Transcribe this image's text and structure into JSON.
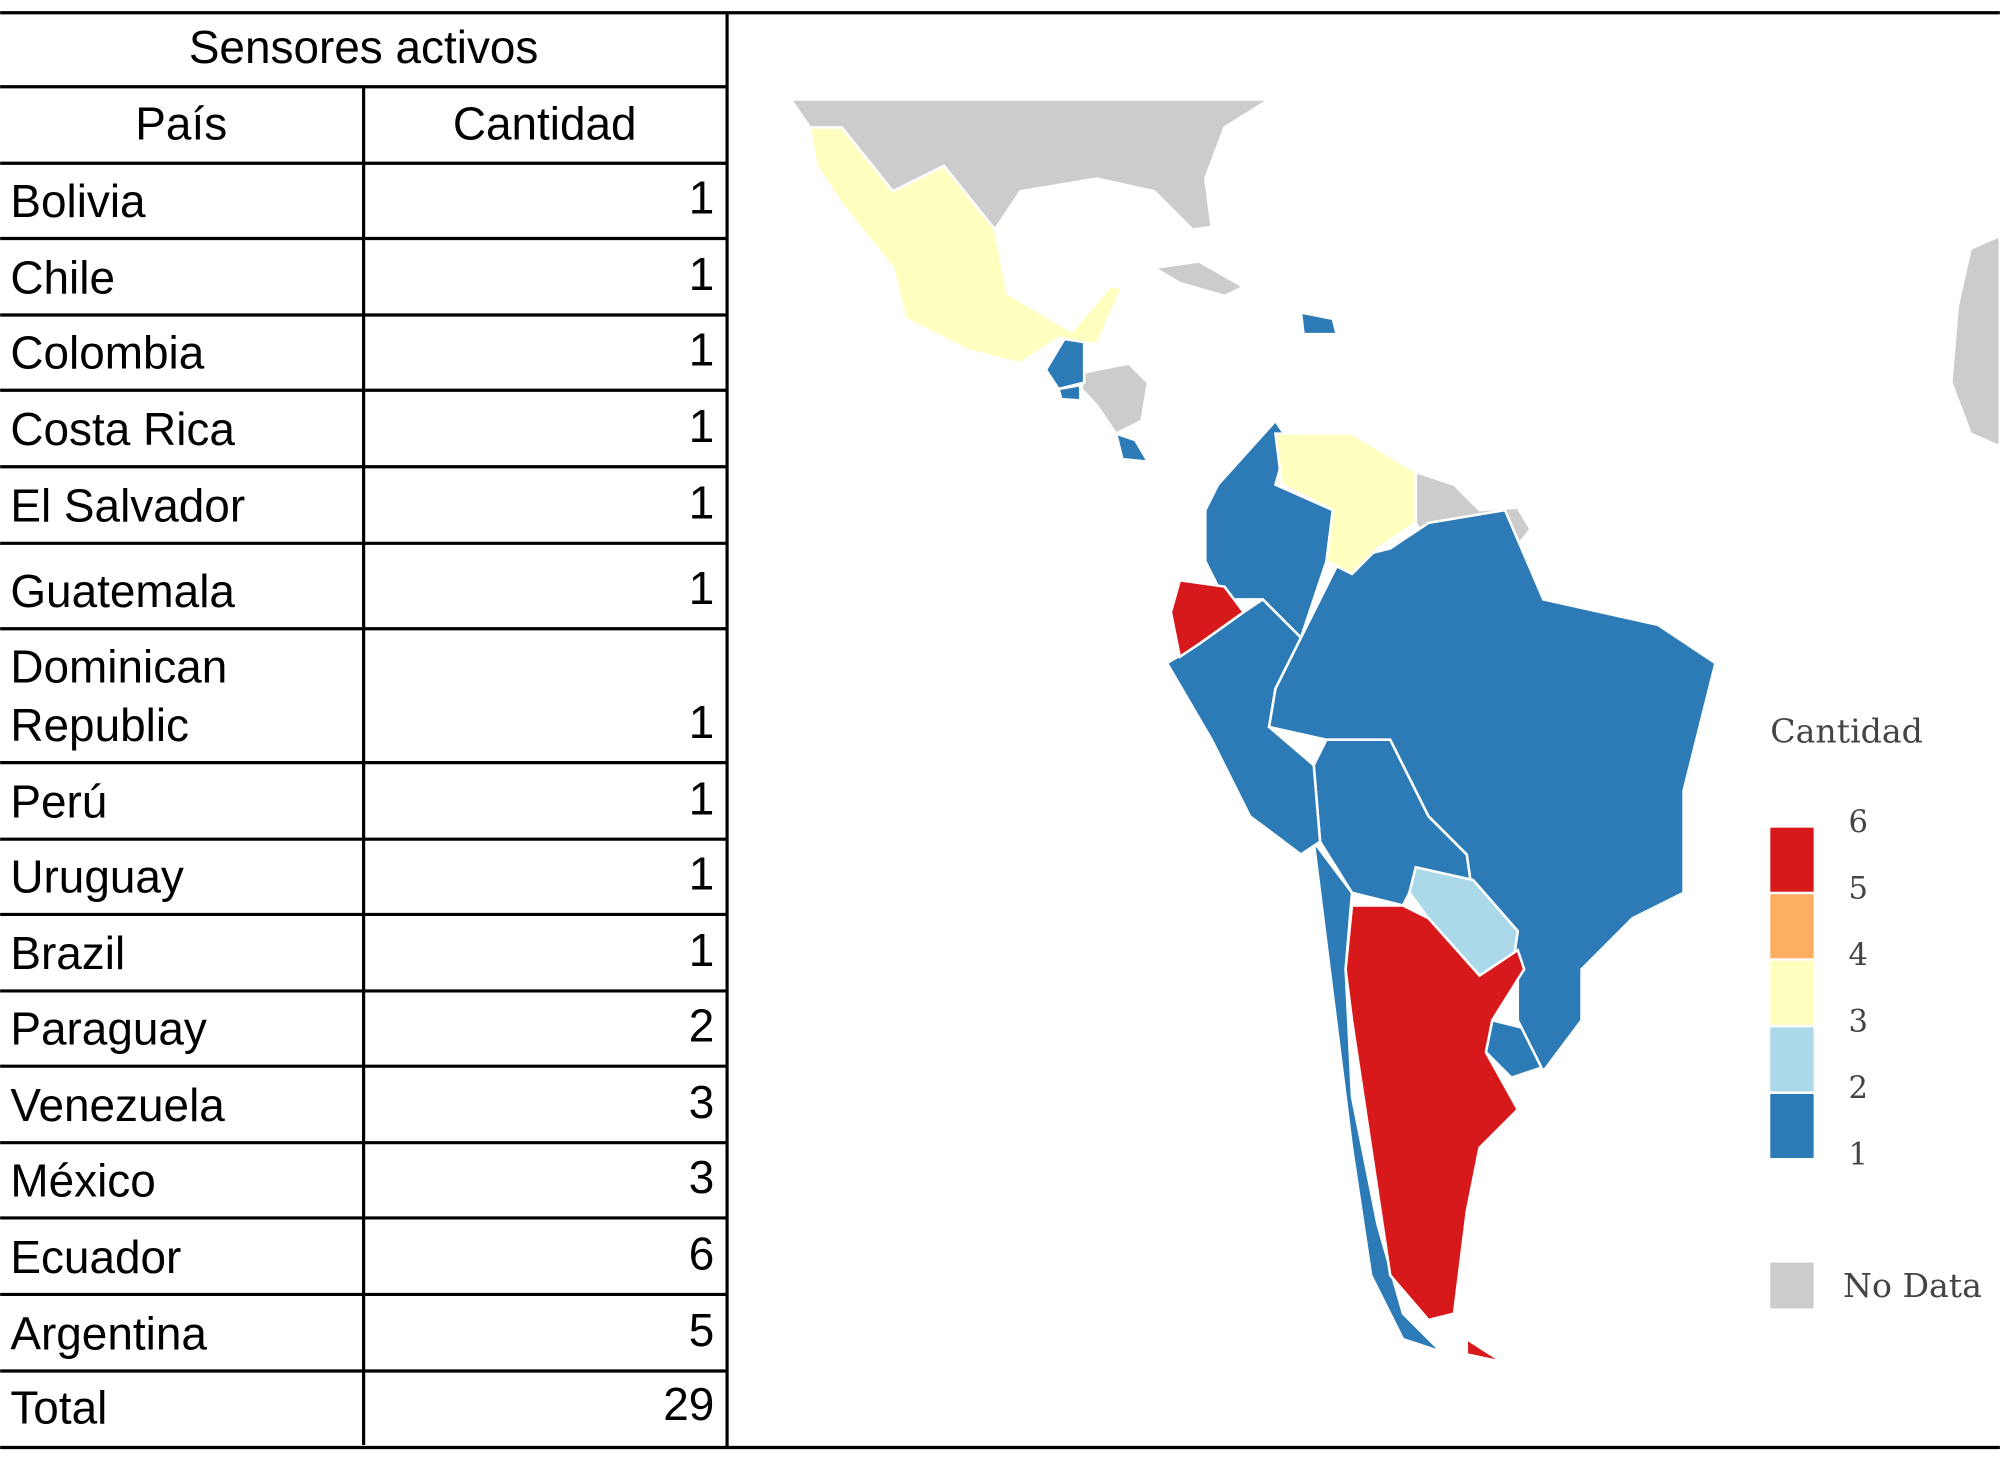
{
  "table": {
    "title": "Sensores activos",
    "header": [
      "País",
      "Cantidad"
    ],
    "rows": [
      [
        "Bolivia",
        1
      ],
      [
        "Chile",
        1
      ],
      [
        "Colombia",
        1
      ],
      [
        "Costa Rica",
        1
      ],
      [
        "El Salvador",
        1
      ],
      [
        "Guatemala",
        1
      ],
      [
        "Dominican Republic",
        1
      ],
      [
        "Perú",
        1
      ],
      [
        "Uruguay",
        1
      ],
      [
        "Brazil",
        1
      ],
      [
        "Paraguay",
        2
      ],
      [
        "Venezuela",
        3
      ],
      [
        "México",
        3
      ],
      [
        "Ecuador",
        6
      ],
      [
        "Argentina",
        5
      ]
    ],
    "total": [
      "Total",
      29
    ]
  },
  "map": {
    "legend": {
      "title": "Cantidad",
      "ticks": [
        6,
        5,
        4,
        3,
        2,
        1
      ],
      "colors": [
        "#d7191c",
        "#fdae61",
        "#ffffbf",
        "#abd9e9",
        "#2c7bb6"
      ],
      "no_data_label": "No Data",
      "no_data_color": "#cccccc"
    }
  }
}
